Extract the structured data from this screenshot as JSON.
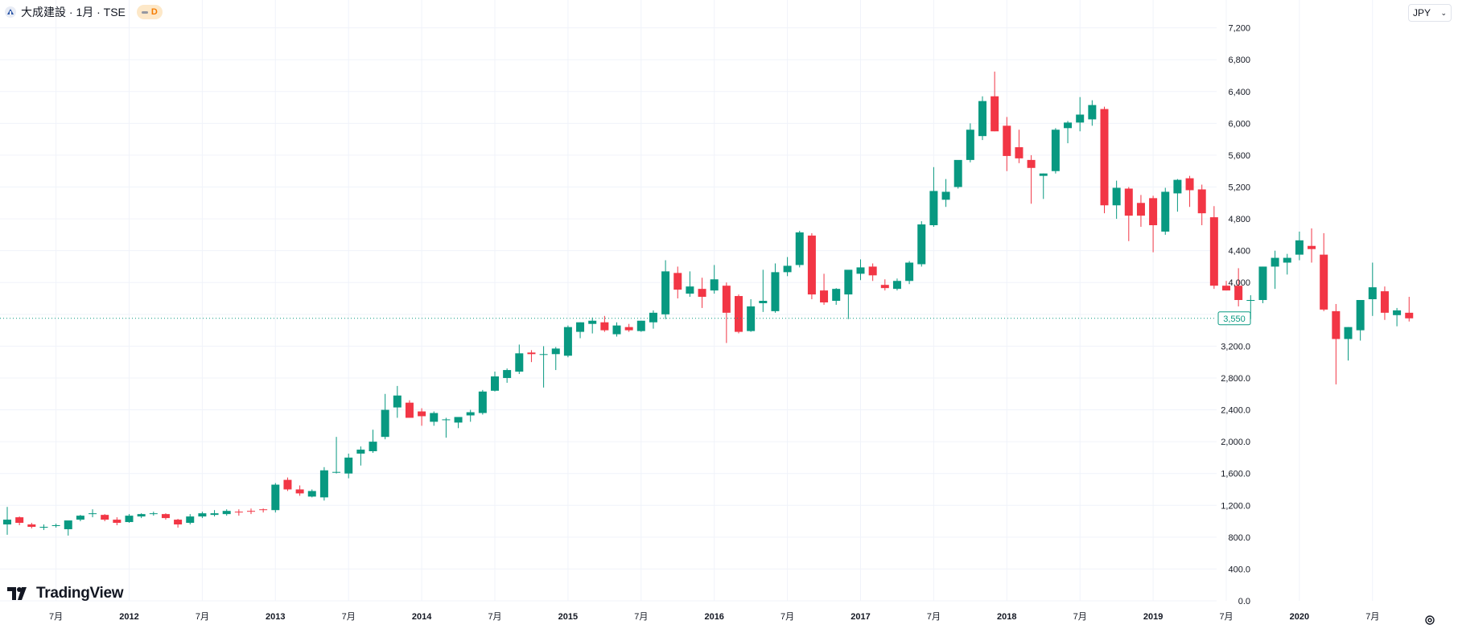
{
  "header": {
    "symbol_title": "大成建設 · 1月 · TSE",
    "badge_letter": "D"
  },
  "currency_button": {
    "label": "JPY"
  },
  "logo": {
    "text": "TradingView"
  },
  "colors": {
    "up": "#089981",
    "down": "#f23645",
    "grid": "#f0f3fa",
    "text": "#131722"
  },
  "chart_data": {
    "type": "candlestick",
    "interval": "1M",
    "y_ticks": [
      "0.0",
      "400.0",
      "800.0",
      "1,200.0",
      "1,600.0",
      "2,000.0",
      "2,400.0",
      "2,800.0",
      "3,200.0",
      "3,600",
      "4,000",
      "4,400",
      "4,800",
      "5,200",
      "5,600",
      "6,000",
      "6,400",
      "6,800",
      "7,200"
    ],
    "y_tick_values": [
      0,
      400,
      800,
      1200,
      1600,
      2000,
      2400,
      2800,
      3200,
      3600,
      4000,
      4400,
      4800,
      5200,
      5600,
      6000,
      6400,
      6800,
      7200
    ],
    "ylim": [
      0,
      7550
    ],
    "x_labels": [
      {
        "i": 4,
        "label": "7月"
      },
      {
        "i": 10,
        "label": "2012"
      },
      {
        "i": 16,
        "label": "7月"
      },
      {
        "i": 22,
        "label": "2013"
      },
      {
        "i": 28,
        "label": "7月"
      },
      {
        "i": 34,
        "label": "2014"
      },
      {
        "i": 40,
        "label": "7月"
      },
      {
        "i": 46,
        "label": "2015"
      },
      {
        "i": 52,
        "label": "7月"
      },
      {
        "i": 58,
        "label": "2016"
      },
      {
        "i": 64,
        "label": "7月"
      },
      {
        "i": 70,
        "label": "2017"
      },
      {
        "i": 76,
        "label": "7月"
      },
      {
        "i": 82,
        "label": "2018"
      },
      {
        "i": 88,
        "label": "7月"
      },
      {
        "i": 94,
        "label": "2019"
      },
      {
        "i": 100,
        "label": "7月"
      },
      {
        "i": 106,
        "label": "2020"
      },
      {
        "i": 112,
        "label": "7月"
      }
    ],
    "last_price_label": "3,550",
    "last_price": 3550,
    "candles": [
      [
        960,
        1180,
        830,
        1020
      ],
      [
        1050,
        1060,
        950,
        980
      ],
      [
        960,
        980,
        910,
        930
      ],
      [
        920,
        960,
        890,
        930
      ],
      [
        940,
        970,
        920,
        950
      ],
      [
        900,
        1000,
        820,
        1010
      ],
      [
        1020,
        1080,
        1000,
        1070
      ],
      [
        1090,
        1150,
        1050,
        1100
      ],
      [
        1080,
        1090,
        1000,
        1020
      ],
      [
        1020,
        1050,
        950,
        980
      ],
      [
        990,
        1090,
        980,
        1070
      ],
      [
        1060,
        1100,
        1040,
        1090
      ],
      [
        1090,
        1120,
        1070,
        1100
      ],
      [
        1090,
        1100,
        1020,
        1040
      ],
      [
        1020,
        1030,
        920,
        960
      ],
      [
        980,
        1090,
        960,
        1060
      ],
      [
        1060,
        1120,
        1040,
        1100
      ],
      [
        1080,
        1140,
        1060,
        1100
      ],
      [
        1090,
        1150,
        1070,
        1130
      ],
      [
        1120,
        1150,
        1070,
        1110
      ],
      [
        1130,
        1160,
        1090,
        1120
      ],
      [
        1150,
        1160,
        1110,
        1140
      ],
      [
        1140,
        1480,
        1110,
        1460
      ],
      [
        1520,
        1550,
        1380,
        1400
      ],
      [
        1400,
        1450,
        1320,
        1350
      ],
      [
        1310,
        1400,
        1300,
        1380
      ],
      [
        1300,
        1680,
        1260,
        1640
      ],
      [
        1620,
        2060,
        1600,
        1620
      ],
      [
        1600,
        1850,
        1540,
        1800
      ],
      [
        1850,
        1940,
        1700,
        1900
      ],
      [
        1880,
        2150,
        1860,
        2000
      ],
      [
        2060,
        2600,
        2030,
        2400
      ],
      [
        2430,
        2700,
        2300,
        2580
      ],
      [
        2490,
        2520,
        2350,
        2300
      ],
      [
        2380,
        2420,
        2200,
        2320
      ],
      [
        2250,
        2380,
        2200,
        2360
      ],
      [
        2270,
        2300,
        2050,
        2280
      ],
      [
        2240,
        2300,
        2170,
        2310
      ],
      [
        2330,
        2400,
        2250,
        2370
      ],
      [
        2360,
        2650,
        2340,
        2630
      ],
      [
        2640,
        2880,
        2630,
        2820
      ],
      [
        2800,
        2920,
        2740,
        2900
      ],
      [
        2880,
        3220,
        2850,
        3110
      ],
      [
        3120,
        3150,
        3000,
        3100
      ],
      [
        3100,
        3200,
        2680,
        3100
      ],
      [
        3100,
        3190,
        2900,
        3170
      ],
      [
        3080,
        3460,
        3060,
        3440
      ],
      [
        3380,
        3500,
        3300,
        3500
      ],
      [
        3480,
        3560,
        3360,
        3520
      ],
      [
        3500,
        3580,
        3380,
        3400
      ],
      [
        3350,
        3500,
        3320,
        3460
      ],
      [
        3440,
        3480,
        3380,
        3400
      ],
      [
        3390,
        3520,
        3380,
        3520
      ],
      [
        3500,
        3650,
        3420,
        3620
      ],
      [
        3600,
        4280,
        3540,
        4140
      ],
      [
        4120,
        4200,
        3800,
        3910
      ],
      [
        3860,
        4140,
        3820,
        3950
      ],
      [
        3920,
        4060,
        3680,
        3820
      ],
      [
        3900,
        4220,
        3860,
        4040
      ],
      [
        3960,
        4000,
        3240,
        3620
      ],
      [
        3830,
        3850,
        3360,
        3380
      ],
      [
        3390,
        3790,
        3380,
        3700
      ],
      [
        3740,
        4160,
        3630,
        3770
      ],
      [
        3640,
        4240,
        3620,
        4130
      ],
      [
        4130,
        4320,
        4080,
        4210
      ],
      [
        4220,
        4650,
        4190,
        4630
      ],
      [
        4590,
        4620,
        3790,
        3850
      ],
      [
        3900,
        4110,
        3720,
        3750
      ],
      [
        3770,
        3930,
        3720,
        3920
      ],
      [
        3850,
        4140,
        3540,
        4160
      ],
      [
        4110,
        4290,
        4030,
        4190
      ],
      [
        4200,
        4240,
        4020,
        4090
      ],
      [
        3970,
        4040,
        3900,
        3930
      ],
      [
        3920,
        4050,
        3900,
        4020
      ],
      [
        4020,
        4270,
        3980,
        4250
      ],
      [
        4230,
        4770,
        4200,
        4730
      ],
      [
        4720,
        5450,
        4700,
        5150
      ],
      [
        5040,
        5300,
        4950,
        5140
      ],
      [
        5200,
        5520,
        5180,
        5540
      ],
      [
        5540,
        6000,
        5510,
        5920
      ],
      [
        5840,
        6340,
        5790,
        6280
      ],
      [
        6340,
        6650,
        5900,
        5900
      ],
      [
        5970,
        6080,
        5400,
        5590
      ],
      [
        5700,
        5920,
        5500,
        5560
      ],
      [
        5540,
        5600,
        4990,
        5440
      ],
      [
        5340,
        5370,
        5050,
        5370
      ],
      [
        5400,
        5940,
        5370,
        5920
      ],
      [
        5940,
        6030,
        5750,
        6010
      ],
      [
        6010,
        6330,
        5900,
        6110
      ],
      [
        6050,
        6290,
        5970,
        6230
      ],
      [
        6180,
        6210,
        4870,
        4970
      ],
      [
        4970,
        5280,
        4800,
        5190
      ],
      [
        5180,
        5200,
        4520,
        4840
      ],
      [
        5000,
        5100,
        4700,
        4840
      ],
      [
        5060,
        5090,
        4380,
        4720
      ],
      [
        4640,
        5190,
        4600,
        5140
      ],
      [
        5120,
        5300,
        4890,
        5290
      ],
      [
        5310,
        5340,
        4950,
        5160
      ],
      [
        5170,
        5230,
        4720,
        4870
      ],
      [
        4820,
        4960,
        3920,
        3960
      ],
      [
        3960,
        4020,
        3900,
        3900
      ],
      [
        3960,
        4180,
        3700,
        3780
      ],
      [
        3780,
        3840,
        3540,
        3780
      ],
      [
        3780,
        4200,
        3740,
        4200
      ],
      [
        4200,
        4400,
        3920,
        4310
      ],
      [
        4250,
        4360,
        4100,
        4310
      ],
      [
        4350,
        4640,
        4280,
        4530
      ],
      [
        4460,
        4680,
        4250,
        4420
      ],
      [
        4350,
        4620,
        3640,
        3660
      ],
      [
        3640,
        3730,
        2720,
        3290
      ],
      [
        3290,
        3440,
        3020,
        3440
      ],
      [
        3400,
        3770,
        3270,
        3780
      ],
      [
        3790,
        4250,
        3580,
        3940
      ],
      [
        3890,
        3950,
        3530,
        3620
      ],
      [
        3590,
        3680,
        3450,
        3650
      ],
      [
        3620,
        3820,
        3510,
        3550
      ]
    ]
  }
}
